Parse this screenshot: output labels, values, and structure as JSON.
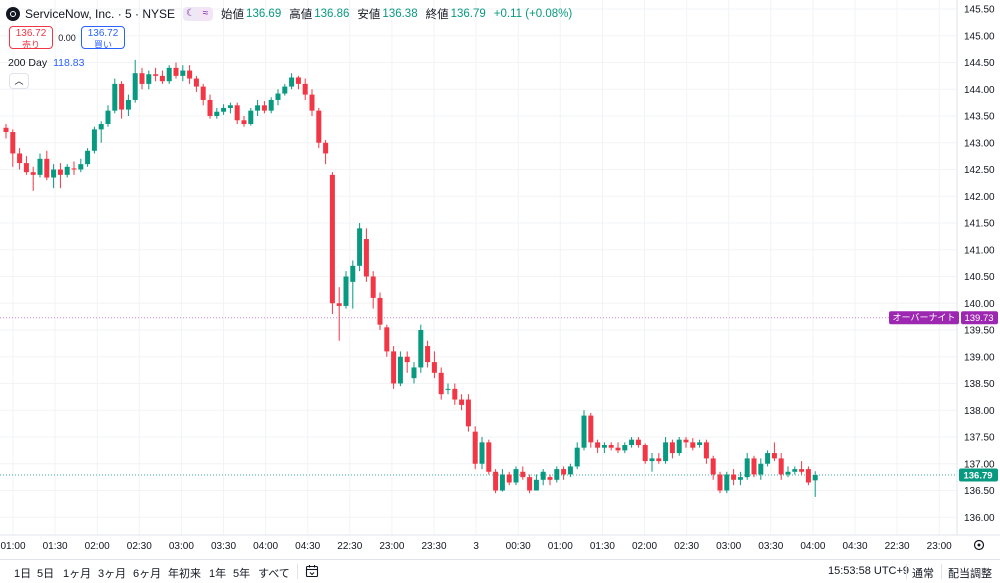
{
  "header": {
    "symbol": "ServiceNow, Inc. · 5 · NYSE",
    "moon_icon": "moon-icon",
    "wave_icon": "approx-icon",
    "open_label": "始値",
    "open": "136.69",
    "high_label": "高値",
    "high": "136.86",
    "low_label": "安値",
    "low": "136.38",
    "close_label": "終値",
    "close": "136.79",
    "change": "+0.11 (+0.08%)"
  },
  "trade": {
    "sell_price": "136.72",
    "sell_label": "売り",
    "spread": "0.00",
    "buy_price": "136.72",
    "buy_label": "買い"
  },
  "indicator": {
    "name": "200 Day",
    "value": "118.83"
  },
  "colors": {
    "up": "#089981",
    "down": "#f23645",
    "overnight": "#9c27b0",
    "accent": "#2962ff"
  },
  "price_axis": {
    "labels": [
      "145.50",
      "145.00",
      "144.50",
      "144.00",
      "143.50",
      "143.00",
      "142.50",
      "142.00",
      "141.50",
      "141.00",
      "140.50",
      "140.00",
      "139.50",
      "139.00",
      "138.50",
      "138.00",
      "137.50",
      "137.00",
      "136.50",
      "136.00"
    ],
    "overnight_label": "オーバーナイト",
    "overnight_value": "139.73",
    "last_value": "136.79"
  },
  "time_axis": {
    "labels": [
      "01:00",
      "01:30",
      "02:00",
      "02:30",
      "03:00",
      "03:30",
      "04:00",
      "04:30",
      "22:30",
      "23:00",
      "23:30",
      "3",
      "00:30",
      "01:00",
      "01:30",
      "02:00",
      "02:30",
      "03:00",
      "03:30",
      "04:00",
      "04:30",
      "22:30",
      "23:00"
    ],
    "settings_icon": "gear-icon"
  },
  "bottom": {
    "ranges": [
      "1日",
      "5日",
      "1ヶ月",
      "3ヶ月",
      "6ヶ月",
      "年初来",
      "1年",
      "5年",
      "すべて"
    ],
    "calendar_icon": "calendar-icon",
    "clock": "15:53:58 UTC+9",
    "session": "通常",
    "layout": "配当調整"
  },
  "chart_data": {
    "type": "candlestick",
    "ylim": [
      135.8,
      145.65
    ],
    "overnight_price": 139.73,
    "last_price": 136.79,
    "candles": [
      {
        "o": 143.28,
        "h": 143.35,
        "l": 143.08,
        "c": 143.2
      },
      {
        "o": 143.2,
        "h": 143.25,
        "l": 142.55,
        "c": 142.8
      },
      {
        "o": 142.8,
        "h": 142.9,
        "l": 142.5,
        "c": 142.62
      },
      {
        "o": 142.62,
        "h": 142.75,
        "l": 142.4,
        "c": 142.45
      },
      {
        "o": 142.45,
        "h": 142.55,
        "l": 142.1,
        "c": 142.4
      },
      {
        "o": 142.4,
        "h": 142.8,
        "l": 142.35,
        "c": 142.7
      },
      {
        "o": 142.7,
        "h": 142.85,
        "l": 142.3,
        "c": 142.35
      },
      {
        "o": 142.35,
        "h": 142.6,
        "l": 142.15,
        "c": 142.5
      },
      {
        "o": 142.5,
        "h": 142.62,
        "l": 142.15,
        "c": 142.4
      },
      {
        "o": 142.4,
        "h": 142.6,
        "l": 142.35,
        "c": 142.55
      },
      {
        "o": 142.52,
        "h": 142.65,
        "l": 142.4,
        "c": 142.5
      },
      {
        "o": 142.5,
        "h": 142.7,
        "l": 142.45,
        "c": 142.6
      },
      {
        "o": 142.6,
        "h": 142.9,
        "l": 142.55,
        "c": 142.85
      },
      {
        "o": 142.85,
        "h": 143.3,
        "l": 142.8,
        "c": 143.25
      },
      {
        "o": 143.25,
        "h": 143.4,
        "l": 143.0,
        "c": 143.35
      },
      {
        "o": 143.35,
        "h": 143.7,
        "l": 143.3,
        "c": 143.6
      },
      {
        "o": 143.6,
        "h": 144.2,
        "l": 143.55,
        "c": 144.1
      },
      {
        "o": 144.1,
        "h": 144.15,
        "l": 143.45,
        "c": 143.62
      },
      {
        "o": 143.62,
        "h": 143.9,
        "l": 143.5,
        "c": 143.8
      },
      {
        "o": 143.8,
        "h": 144.55,
        "l": 143.75,
        "c": 144.3
      },
      {
        "o": 144.3,
        "h": 144.4,
        "l": 144.0,
        "c": 144.1
      },
      {
        "o": 144.1,
        "h": 144.35,
        "l": 144.0,
        "c": 144.28
      },
      {
        "o": 144.28,
        "h": 144.4,
        "l": 144.15,
        "c": 144.25
      },
      {
        "o": 144.25,
        "h": 144.35,
        "l": 144.1,
        "c": 144.15
      },
      {
        "o": 144.15,
        "h": 144.45,
        "l": 144.1,
        "c": 144.4
      },
      {
        "o": 144.4,
        "h": 144.5,
        "l": 144.2,
        "c": 144.25
      },
      {
        "o": 144.25,
        "h": 144.45,
        "l": 144.15,
        "c": 144.35
      },
      {
        "o": 144.35,
        "h": 144.45,
        "l": 144.1,
        "c": 144.2
      },
      {
        "o": 144.2,
        "h": 144.25,
        "l": 143.95,
        "c": 144.05
      },
      {
        "o": 144.05,
        "h": 144.1,
        "l": 143.7,
        "c": 143.8
      },
      {
        "o": 143.8,
        "h": 143.9,
        "l": 143.45,
        "c": 143.5
      },
      {
        "o": 143.5,
        "h": 143.65,
        "l": 143.45,
        "c": 143.58
      },
      {
        "o": 143.58,
        "h": 143.72,
        "l": 143.52,
        "c": 143.65
      },
      {
        "o": 143.65,
        "h": 143.75,
        "l": 143.55,
        "c": 143.7
      },
      {
        "o": 143.7,
        "h": 143.75,
        "l": 143.35,
        "c": 143.42
      },
      {
        "o": 143.42,
        "h": 143.5,
        "l": 143.3,
        "c": 143.35
      },
      {
        "o": 143.35,
        "h": 143.65,
        "l": 143.32,
        "c": 143.6
      },
      {
        "o": 143.6,
        "h": 143.8,
        "l": 143.5,
        "c": 143.7
      },
      {
        "o": 143.7,
        "h": 143.78,
        "l": 143.55,
        "c": 143.6
      },
      {
        "o": 143.6,
        "h": 143.85,
        "l": 143.55,
        "c": 143.8
      },
      {
        "o": 143.8,
        "h": 144.0,
        "l": 143.7,
        "c": 143.92
      },
      {
        "o": 143.92,
        "h": 144.1,
        "l": 143.88,
        "c": 144.05
      },
      {
        "o": 144.05,
        "h": 144.3,
        "l": 144.0,
        "c": 144.22
      },
      {
        "o": 144.22,
        "h": 144.25,
        "l": 144.0,
        "c": 144.1
      },
      {
        "o": 144.1,
        "h": 144.2,
        "l": 143.8,
        "c": 143.9
      },
      {
        "o": 143.9,
        "h": 144.0,
        "l": 143.5,
        "c": 143.6
      },
      {
        "o": 143.6,
        "h": 143.65,
        "l": 142.9,
        "c": 143.0
      },
      {
        "o": 143.0,
        "h": 143.05,
        "l": 142.6,
        "c": 142.8
      },
      {
        "o": 142.4,
        "h": 142.45,
        "l": 139.8,
        "c": 140.0
      },
      {
        "o": 140.0,
        "h": 140.3,
        "l": 139.3,
        "c": 139.95
      },
      {
        "o": 139.95,
        "h": 140.6,
        "l": 139.9,
        "c": 140.5
      },
      {
        "o": 140.4,
        "h": 140.8,
        "l": 139.9,
        "c": 140.7
      },
      {
        "o": 140.7,
        "h": 141.5,
        "l": 140.6,
        "c": 141.4
      },
      {
        "o": 141.2,
        "h": 141.4,
        "l": 140.4,
        "c": 140.5
      },
      {
        "o": 140.5,
        "h": 140.6,
        "l": 139.9,
        "c": 140.1
      },
      {
        "o": 140.1,
        "h": 140.2,
        "l": 139.5,
        "c": 139.6
      },
      {
        "o": 139.55,
        "h": 139.6,
        "l": 139.0,
        "c": 139.1
      },
      {
        "o": 139.1,
        "h": 139.2,
        "l": 138.4,
        "c": 138.5
      },
      {
        "o": 138.5,
        "h": 139.1,
        "l": 138.45,
        "c": 139.0
      },
      {
        "o": 139.0,
        "h": 139.1,
        "l": 138.7,
        "c": 138.9
      },
      {
        "o": 138.6,
        "h": 138.9,
        "l": 138.5,
        "c": 138.8
      },
      {
        "o": 138.8,
        "h": 139.6,
        "l": 138.7,
        "c": 139.5
      },
      {
        "o": 139.2,
        "h": 139.3,
        "l": 138.8,
        "c": 138.9
      },
      {
        "o": 138.9,
        "h": 139.1,
        "l": 138.6,
        "c": 138.7
      },
      {
        "o": 138.7,
        "h": 138.8,
        "l": 138.2,
        "c": 138.3
      },
      {
        "o": 138.4,
        "h": 138.5,
        "l": 138.3,
        "c": 138.4
      },
      {
        "o": 138.4,
        "h": 138.5,
        "l": 138.1,
        "c": 138.2
      },
      {
        "o": 138.2,
        "h": 138.3,
        "l": 138.0,
        "c": 138.1
      },
      {
        "o": 138.2,
        "h": 138.3,
        "l": 137.6,
        "c": 137.7
      },
      {
        "o": 137.6,
        "h": 137.7,
        "l": 136.9,
        "c": 137.0
      },
      {
        "o": 137.0,
        "h": 137.5,
        "l": 136.9,
        "c": 137.4
      },
      {
        "o": 137.4,
        "h": 137.45,
        "l": 136.8,
        "c": 136.85
      },
      {
        "o": 136.85,
        "h": 136.9,
        "l": 136.45,
        "c": 136.5
      },
      {
        "o": 136.5,
        "h": 136.9,
        "l": 136.48,
        "c": 136.8
      },
      {
        "o": 136.8,
        "h": 136.85,
        "l": 136.6,
        "c": 136.65
      },
      {
        "o": 136.65,
        "h": 136.95,
        "l": 136.6,
        "c": 136.9
      },
      {
        "o": 136.85,
        "h": 136.95,
        "l": 136.7,
        "c": 136.75
      },
      {
        "o": 136.75,
        "h": 136.8,
        "l": 136.45,
        "c": 136.5
      },
      {
        "o": 136.5,
        "h": 136.8,
        "l": 136.5,
        "c": 136.7
      },
      {
        "o": 136.7,
        "h": 136.9,
        "l": 136.6,
        "c": 136.85
      },
      {
        "o": 136.75,
        "h": 136.8,
        "l": 136.6,
        "c": 136.7
      },
      {
        "o": 136.7,
        "h": 136.95,
        "l": 136.65,
        "c": 136.9
      },
      {
        "o": 136.9,
        "h": 136.95,
        "l": 136.7,
        "c": 136.8
      },
      {
        "o": 136.8,
        "h": 137.0,
        "l": 136.75,
        "c": 136.95
      },
      {
        "o": 136.95,
        "h": 137.4,
        "l": 136.9,
        "c": 137.3
      },
      {
        "o": 137.3,
        "h": 138.0,
        "l": 137.25,
        "c": 137.9
      },
      {
        "o": 137.9,
        "h": 137.95,
        "l": 137.3,
        "c": 137.4
      },
      {
        "o": 137.4,
        "h": 137.45,
        "l": 137.2,
        "c": 137.3
      },
      {
        "o": 137.3,
        "h": 137.4,
        "l": 137.2,
        "c": 137.35
      },
      {
        "o": 137.35,
        "h": 137.4,
        "l": 137.25,
        "c": 137.3
      },
      {
        "o": 137.3,
        "h": 137.4,
        "l": 137.2,
        "c": 137.25
      },
      {
        "o": 137.25,
        "h": 137.4,
        "l": 137.2,
        "c": 137.35
      },
      {
        "o": 137.35,
        "h": 137.5,
        "l": 137.3,
        "c": 137.45
      },
      {
        "o": 137.45,
        "h": 137.5,
        "l": 137.3,
        "c": 137.35
      },
      {
        "o": 137.35,
        "h": 137.38,
        "l": 137.0,
        "c": 137.05
      },
      {
        "o": 137.05,
        "h": 137.2,
        "l": 136.85,
        "c": 137.1
      },
      {
        "o": 137.1,
        "h": 137.2,
        "l": 137.0,
        "c": 137.05
      },
      {
        "o": 137.05,
        "h": 137.5,
        "l": 137.0,
        "c": 137.4
      },
      {
        "o": 137.4,
        "h": 137.45,
        "l": 137.1,
        "c": 137.2
      },
      {
        "o": 137.2,
        "h": 137.5,
        "l": 137.15,
        "c": 137.45
      },
      {
        "o": 137.45,
        "h": 137.5,
        "l": 137.3,
        "c": 137.4
      },
      {
        "o": 137.4,
        "h": 137.48,
        "l": 137.25,
        "c": 137.3
      },
      {
        "o": 137.35,
        "h": 137.45,
        "l": 137.3,
        "c": 137.4
      },
      {
        "o": 137.4,
        "h": 137.45,
        "l": 137.0,
        "c": 137.1
      },
      {
        "o": 137.1,
        "h": 137.15,
        "l": 136.7,
        "c": 136.8
      },
      {
        "o": 136.8,
        "h": 136.85,
        "l": 136.45,
        "c": 136.5
      },
      {
        "o": 136.5,
        "h": 136.85,
        "l": 136.45,
        "c": 136.8
      },
      {
        "o": 136.8,
        "h": 136.9,
        "l": 136.6,
        "c": 136.7
      },
      {
        "o": 136.7,
        "h": 136.85,
        "l": 136.6,
        "c": 136.75
      },
      {
        "o": 136.75,
        "h": 137.2,
        "l": 136.7,
        "c": 137.1
      },
      {
        "o": 137.1,
        "h": 137.15,
        "l": 136.75,
        "c": 136.8
      },
      {
        "o": 136.8,
        "h": 137.1,
        "l": 136.7,
        "c": 137.0
      },
      {
        "o": 137.0,
        "h": 137.25,
        "l": 136.95,
        "c": 137.2
      },
      {
        "o": 137.2,
        "h": 137.4,
        "l": 137.05,
        "c": 137.1
      },
      {
        "o": 137.1,
        "h": 137.2,
        "l": 136.7,
        "c": 136.8
      },
      {
        "o": 136.8,
        "h": 136.95,
        "l": 136.75,
        "c": 136.85
      },
      {
        "o": 136.85,
        "h": 136.95,
        "l": 136.8,
        "c": 136.9
      },
      {
        "o": 136.9,
        "h": 137.05,
        "l": 136.8,
        "c": 136.85
      },
      {
        "o": 136.9,
        "h": 136.95,
        "l": 136.6,
        "c": 136.65
      },
      {
        "o": 136.69,
        "h": 136.86,
        "l": 136.38,
        "c": 136.79
      }
    ]
  }
}
